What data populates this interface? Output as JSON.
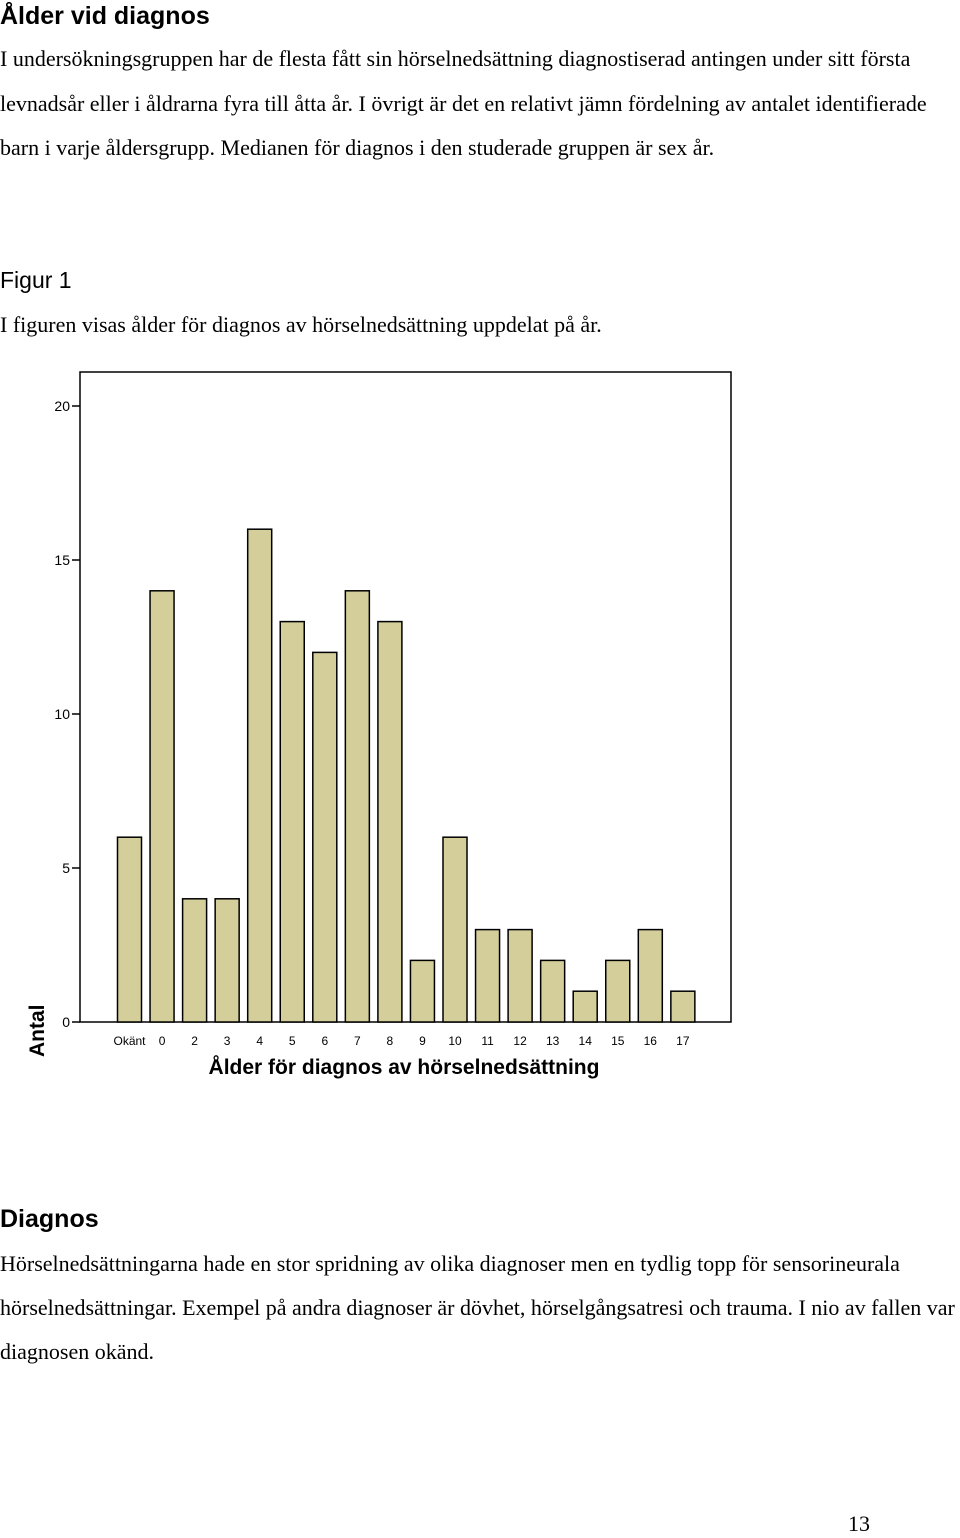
{
  "section1": {
    "heading": "Ålder vid diagnos",
    "paragraph": "I undersökningsgruppen har de flesta fått sin hörselnedsättning diagnostiserad antingen under sitt första levnadsår eller i åldrarna fyra till åtta år. I övrigt är det en relativt jämn fördelning av antalet identifierade barn i varje åldersgrupp. Medianen för diagnos i den studerade gruppen är sex år."
  },
  "figure": {
    "label": "Figur 1",
    "caption": "I figuren visas ålder för diagnos av hörselnedsättning uppdelat på år."
  },
  "chart_data": {
    "type": "bar",
    "title": "",
    "xlabel": "Ålder för diagnos av hörselnedsättning",
    "ylabel": "Antal",
    "categories": [
      "Okänt",
      "0",
      "2",
      "3",
      "4",
      "5",
      "6",
      "7",
      "8",
      "9",
      "10",
      "11",
      "12",
      "13",
      "14",
      "15",
      "16",
      "17"
    ],
    "values": [
      6,
      14,
      4,
      4,
      16,
      13,
      12,
      14,
      13,
      2,
      6,
      3,
      3,
      2,
      1,
      2,
      3,
      1
    ],
    "ylim": [
      0,
      21
    ],
    "yticks": [
      0,
      5,
      10,
      15,
      20
    ],
    "grid": false,
    "bar_color": "#d4cf9a",
    "bar_stroke": "#000000"
  },
  "section2": {
    "heading": "Diagnos",
    "paragraph": "Hörselnedsättningarna hade en stor spridning av olika diagnoser men en tydlig topp för sensorineurala hörselnedsättningar. Exempel på andra diagnoser är dövhet, hörselgångsatresi och trauma. I nio av fallen var diagnosen okänd."
  },
  "page_number": "13"
}
